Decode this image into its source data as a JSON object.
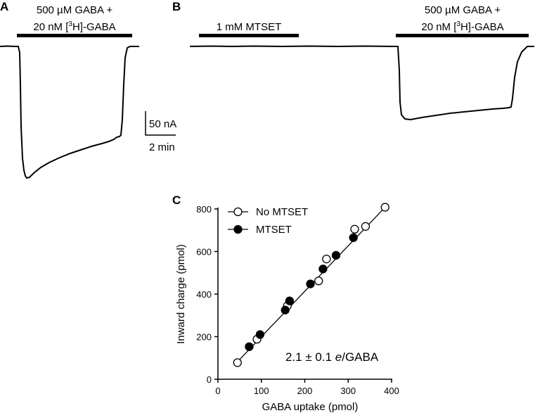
{
  "panel_a": {
    "label": "A",
    "bar_label_line1": "500 µM GABA +",
    "bar_label_line2_pre": "20 nM [",
    "bar_label_line2_sup": "3",
    "bar_label_line2_post": "H]-GABA"
  },
  "panel_b": {
    "label": "B",
    "bar1_label": "1 mM MTSET",
    "bar2_label_line1": "500 µM GABA +",
    "bar2_label_line2_pre": "20 nM [",
    "bar2_label_line2_sup": "3",
    "bar2_label_line2_post": "H]-GABA"
  },
  "scale_bar": {
    "current_label": "50 nA",
    "time_label": "2 min"
  },
  "chart_data": {
    "type": "scatter",
    "panel_label": "C",
    "xlabel": "GABA uptake (pmol)",
    "ylabel": "Inward charge (pmol)",
    "xlim": [
      0,
      400
    ],
    "ylim": [
      0,
      800
    ],
    "xticks": [
      0,
      100,
      200,
      300,
      400
    ],
    "yticks": [
      0,
      200,
      400,
      600,
      800
    ],
    "legend_position": "top-left",
    "series": [
      {
        "name": "No MTSET",
        "marker": "open-circle",
        "points": [
          [
            45,
            78
          ],
          [
            90,
            188
          ],
          [
            160,
            345
          ],
          [
            232,
            462
          ],
          [
            250,
            565
          ],
          [
            315,
            705
          ],
          [
            340,
            718
          ],
          [
            385,
            808
          ]
        ]
      },
      {
        "name": "MTSET",
        "marker": "filled-circle",
        "points": [
          [
            72,
            153
          ],
          [
            97,
            210
          ],
          [
            155,
            325
          ],
          [
            165,
            368
          ],
          [
            213,
            448
          ],
          [
            242,
            518
          ],
          [
            272,
            582
          ],
          [
            312,
            665
          ]
        ]
      }
    ],
    "fit_line": {
      "x": [
        45,
        385
      ],
      "y": [
        82,
        808
      ]
    },
    "annotation": {
      "value_text": "2.1 ± 0.1 ",
      "italic_unit": "e",
      "suffix": "/GABA"
    }
  }
}
